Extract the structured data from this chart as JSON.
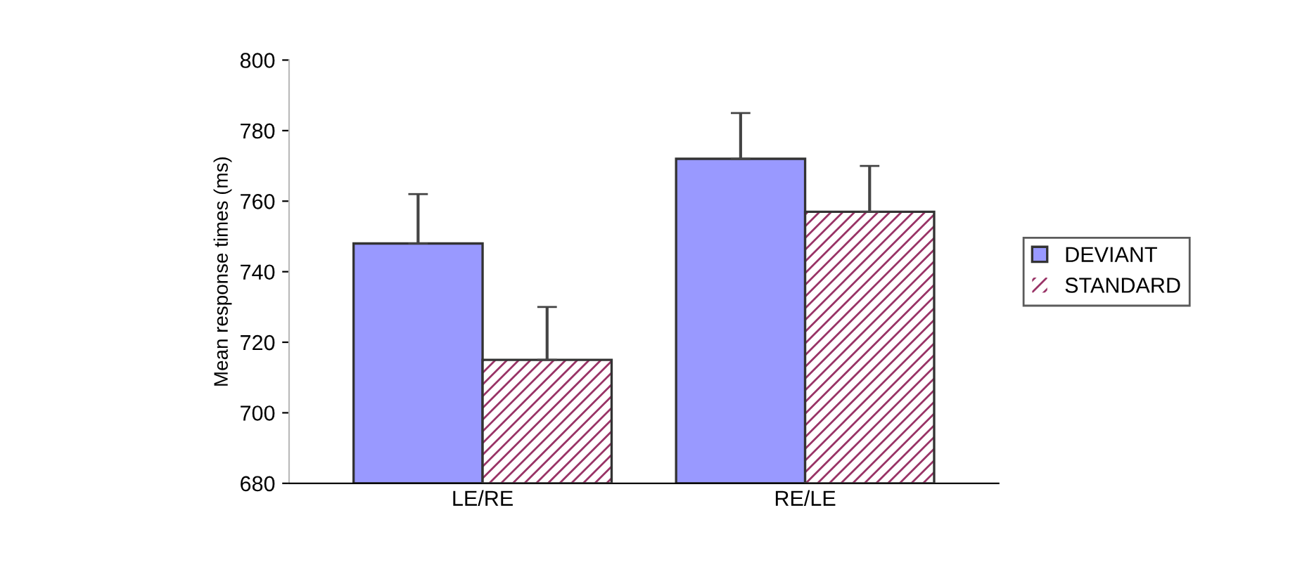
{
  "chart_data": {
    "type": "bar",
    "ylabel": "Mean response times (ms)",
    "categories": [
      "LE/RE",
      "RE/LE"
    ],
    "series": [
      {
        "name": "DEVIANT",
        "color": "#9999ff",
        "values": [
          748,
          772
        ],
        "errors": [
          [
            748,
            762
          ],
          [
            772,
            785
          ]
        ]
      },
      {
        "name": "STANDARD",
        "color": "#993366",
        "values": [
          715,
          757
        ],
        "errors": [
          [
            715,
            730
          ],
          [
            757,
            770
          ]
        ]
      }
    ],
    "ylim": [
      680,
      800
    ],
    "yticks": [
      680,
      700,
      720,
      740,
      760,
      780,
      800
    ],
    "grid": false,
    "legend": "right"
  }
}
